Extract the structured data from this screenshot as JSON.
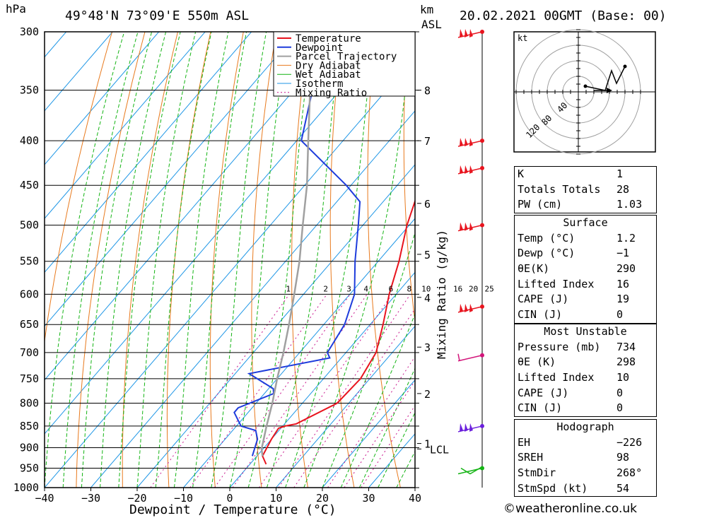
{
  "header": {
    "units_p": "hPa",
    "location": "49°48'N 73°09'E 550m ASL",
    "units_km": "km",
    "units_asl": "ASL",
    "date": "20.02.2021 00GMT (Base: 00)"
  },
  "chart_data": {
    "type": "line",
    "xlabel": "Dewpoint / Temperature (°C)",
    "ylabel": "hPa",
    "mixing_ratio_label": "Mixing Ratio (g/kg)",
    "x_ticks": [
      -40,
      -30,
      -20,
      -10,
      0,
      10,
      20,
      30,
      40
    ],
    "pressure_levels": [
      300,
      350,
      400,
      450,
      500,
      550,
      600,
      650,
      700,
      750,
      800,
      850,
      900,
      950,
      1000
    ],
    "height_km": [
      {
        "label": "8",
        "p": 350
      },
      {
        "label": "7",
        "p": 400
      },
      {
        "label": "6",
        "p": 472
      },
      {
        "label": "5",
        "p": 540
      },
      {
        "label": "4",
        "p": 605
      },
      {
        "label": "3",
        "p": 690
      },
      {
        "label": "2",
        "p": 780
      },
      {
        "label": "1",
        "p": 890
      },
      {
        "label": "LCL",
        "p": 903
      }
    ],
    "mixing_ratio_values": [
      "1",
      "2",
      "3",
      "4",
      "6",
      "8",
      "10",
      "16",
      "20",
      "25"
    ],
    "legend": [
      "Temperature",
      "Dewpoint",
      "Parcel Trajectory",
      "Dry Adiabat",
      "Wet Adiabat",
      "Isotherm",
      "Mixing Ratio"
    ],
    "colors": {
      "temperature": "#e8141e",
      "dewpoint": "#1e3cdc",
      "parcel": "#a0a0a0",
      "dry_adiabat": "#e87a1e",
      "wet_adiabat": "#14b414",
      "isotherm": "#1e96e6",
      "mixing_ratio": "#c8148c"
    },
    "series": [
      {
        "name": "Temperature",
        "points": [
          {
            "p": 940,
            "t": 3.5
          },
          {
            "p": 920,
            "t": 1.2
          },
          {
            "p": 880,
            "t": 0
          },
          {
            "p": 855,
            "t": -0.5
          },
          {
            "p": 850,
            "t": 0.5
          },
          {
            "p": 845,
            "t": 2.5
          },
          {
            "p": 800,
            "t": 7.5
          },
          {
            "p": 750,
            "t": 8
          },
          {
            "p": 700,
            "t": 6.5
          },
          {
            "p": 650,
            "t": 2.8
          },
          {
            "p": 600,
            "t": -1.5
          },
          {
            "p": 550,
            "t": -5.5
          },
          {
            "p": 500,
            "t": -10.5
          },
          {
            "p": 450,
            "t": -15
          },
          {
            "p": 420,
            "t": -18.5
          },
          {
            "p": 400,
            "t": -21.5
          },
          {
            "p": 350,
            "t": -30.5
          },
          {
            "p": 300,
            "t": -41
          }
        ]
      },
      {
        "name": "Dewpoint",
        "points": [
          {
            "p": 920,
            "t": -1
          },
          {
            "p": 880,
            "t": -3
          },
          {
            "p": 860,
            "t": -5
          },
          {
            "p": 850,
            "t": -9
          },
          {
            "p": 820,
            "t": -13
          },
          {
            "p": 810,
            "t": -13
          },
          {
            "p": 780,
            "t": -8
          },
          {
            "p": 770,
            "t": -9
          },
          {
            "p": 740,
            "t": -17
          },
          {
            "p": 710,
            "t": -2.5
          },
          {
            "p": 700,
            "t": -4
          },
          {
            "p": 650,
            "t": -5.5
          },
          {
            "p": 600,
            "t": -9
          },
          {
            "p": 550,
            "t": -15
          },
          {
            "p": 500,
            "t": -21
          },
          {
            "p": 470,
            "t": -25
          },
          {
            "p": 450,
            "t": -31
          },
          {
            "p": 400,
            "t": -49
          },
          {
            "p": 350,
            "t": -56
          },
          {
            "p": 320,
            "t": -61
          },
          {
            "p": 300,
            "t": -67
          }
        ]
      },
      {
        "name": "Parcel Trajectory",
        "points": [
          {
            "p": 920,
            "t": 1.2
          },
          {
            "p": 903,
            "t": -0.3
          },
          {
            "p": 850,
            "t": -3.5
          },
          {
            "p": 800,
            "t": -6.5
          },
          {
            "p": 750,
            "t": -10
          },
          {
            "p": 700,
            "t": -13.5
          },
          {
            "p": 650,
            "t": -17.5
          },
          {
            "p": 600,
            "t": -22
          },
          {
            "p": 550,
            "t": -27
          },
          {
            "p": 500,
            "t": -33
          },
          {
            "p": 450,
            "t": -39.5
          },
          {
            "p": 400,
            "t": -47.5
          },
          {
            "p": 350,
            "t": -56.5
          },
          {
            "p": 310,
            "t": -65
          }
        ]
      }
    ],
    "wind_barbs_p": [
      300,
      400,
      430,
      500,
      620,
      705,
      850,
      950
    ]
  },
  "hodograph": {
    "unit": "kt",
    "rings": [
      "40",
      "80",
      "120"
    ],
    "storm_motion_arrow": true
  },
  "indices": {
    "rows": [
      {
        "k": "K",
        "v": "1"
      },
      {
        "k": "Totals Totals",
        "v": "28"
      },
      {
        "k": "PW (cm)",
        "v": "1.03"
      }
    ]
  },
  "surface": {
    "title": "Surface",
    "rows": [
      {
        "k": "Temp (°C)",
        "v": "1.2"
      },
      {
        "k": "Dewp (°C)",
        "v": "-1"
      },
      {
        "k": "θE(K)",
        "v": "290"
      },
      {
        "k": "Lifted Index",
        "v": "16"
      },
      {
        "k": "CAPE (J)",
        "v": "19"
      },
      {
        "k": "CIN (J)",
        "v": "0"
      }
    ]
  },
  "most_unstable": {
    "title": "Most Unstable",
    "rows": [
      {
        "k": "Pressure (mb)",
        "v": "734"
      },
      {
        "k": "θE (K)",
        "v": "298"
      },
      {
        "k": "Lifted Index",
        "v": "10"
      },
      {
        "k": "CAPE (J)",
        "v": "0"
      },
      {
        "k": "CIN (J)",
        "v": "0"
      }
    ]
  },
  "hodo_stats": {
    "title": "Hodograph",
    "rows": [
      {
        "k": "EH",
        "v": "-226"
      },
      {
        "k": "SREH",
        "v": "98"
      },
      {
        "k": "StmDir",
        "v": "268°"
      },
      {
        "k": "StmSpd (kt)",
        "v": "54"
      }
    ]
  },
  "credit": "©weatheronline.co.uk"
}
